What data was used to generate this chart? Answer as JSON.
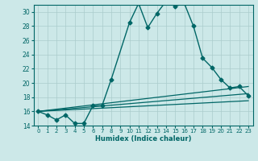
{
  "title": "",
  "xlabel": "Humidex (Indice chaleur)",
  "background_color": "#cce8e8",
  "grid_color": "#aacccc",
  "line_color": "#006666",
  "xlim": [
    -0.5,
    23.5
  ],
  "ylim": [
    14,
    31
  ],
  "xticks": [
    0,
    1,
    2,
    3,
    4,
    5,
    6,
    7,
    8,
    9,
    10,
    11,
    12,
    13,
    14,
    15,
    16,
    17,
    18,
    19,
    20,
    21,
    22,
    23
  ],
  "yticks": [
    14,
    16,
    18,
    20,
    22,
    24,
    26,
    28,
    30
  ],
  "lines": [
    {
      "x": [
        0,
        1,
        2,
        3,
        4,
        5,
        6,
        7,
        8,
        10,
        11,
        12,
        13,
        14,
        15,
        16,
        17,
        18,
        19,
        20,
        21,
        22,
        23
      ],
      "y": [
        16,
        15.5,
        14.8,
        15.5,
        14.3,
        14.3,
        16.8,
        16.8,
        20.5,
        28.5,
        31.2,
        27.8,
        29.8,
        31.5,
        30.8,
        31.2,
        28.0,
        23.5,
        22.2,
        20.5,
        19.3,
        19.5,
        18.2
      ],
      "marker": "D",
      "markersize": 2.5,
      "linewidth": 1.0
    },
    {
      "x": [
        0,
        23
      ],
      "y": [
        16,
        19.5
      ],
      "marker": null,
      "linewidth": 0.9
    },
    {
      "x": [
        0,
        23
      ],
      "y": [
        16,
        18.5
      ],
      "marker": null,
      "linewidth": 0.9
    },
    {
      "x": [
        0,
        23
      ],
      "y": [
        16,
        17.5
      ],
      "marker": null,
      "linewidth": 0.9
    }
  ]
}
